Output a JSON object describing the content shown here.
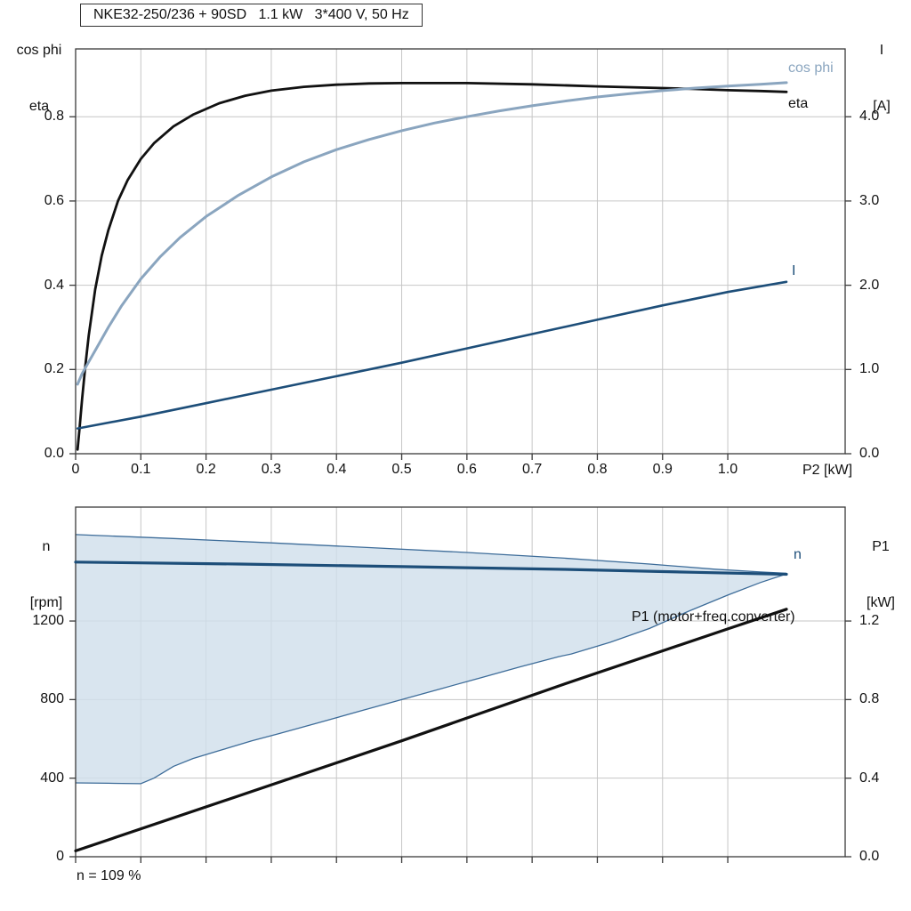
{
  "title": "NKE32-250/236 + 90SD   1.1 kW   3*400 V, 50 Hz",
  "footnote": "n = 109 %",
  "colors": {
    "black": "#111111",
    "cos_phi": "#8aa5bf",
    "dark_blue": "#1d4e79",
    "fill": "#cfdeeb",
    "fill_border": "#3d6c99",
    "grid": "#c6c6c6",
    "frame": "#3a3a3a"
  },
  "labels": {
    "y_left_top_line1": "cos phi",
    "y_left_top_line2": "eta",
    "y_right_top_line1": "I",
    "y_right_top_line2": "[A]",
    "x_top": "P2 [kW]",
    "y_left_bottom_line1": "n",
    "y_left_bottom_line2": "[rpm]",
    "y_right_bottom_line1": "P1",
    "y_right_bottom_line2": "[kW]",
    "curve_cos_phi": "cos phi",
    "curve_eta": "eta",
    "curve_I": "I",
    "curve_n": "n",
    "curve_P1": "P1 (motor+freq.converter)"
  },
  "chart_data": [
    {
      "type": "line",
      "title": "NKE32-250/236 + 90SD   1.1 kW   3*400 V, 50 Hz",
      "xlabel": "P2 [kW]",
      "x_axis": {
        "range": [
          0,
          1.18
        ],
        "ticks": [
          0,
          0.1,
          0.2,
          0.3,
          0.4,
          0.5,
          0.6,
          0.7,
          0.8,
          0.9,
          1.0
        ],
        "tick_labels": [
          "0",
          "0.1",
          "0.2",
          "0.3",
          "0.4",
          "0.5",
          "0.6",
          "0.7",
          "0.8",
          "0.9",
          "1.0"
        ]
      },
      "y_left": {
        "label": "cos phi / eta",
        "range": [
          0,
          0.961
        ],
        "ticks": [
          0,
          0.2,
          0.4,
          0.6,
          0.8
        ],
        "tick_labels": [
          "0.0",
          "0.2",
          "0.4",
          "0.6",
          "0.8"
        ]
      },
      "y_right": {
        "label": "I [A]",
        "range": [
          0,
          4.805
        ],
        "ticks": [
          0,
          1,
          2,
          3,
          4
        ],
        "tick_labels": [
          "0.0",
          "1.0",
          "2.0",
          "3.0",
          "4.0"
        ]
      },
      "series": [
        {
          "name": "eta",
          "axis": "left",
          "color": "black",
          "width": 2.8,
          "points": [
            [
              0.003,
              0.01
            ],
            [
              0.006,
              0.06
            ],
            [
              0.01,
              0.13
            ],
            [
              0.015,
              0.21
            ],
            [
              0.02,
              0.28
            ],
            [
              0.03,
              0.39
            ],
            [
              0.04,
              0.47
            ],
            [
              0.05,
              0.53
            ],
            [
              0.065,
              0.6
            ],
            [
              0.08,
              0.65
            ],
            [
              0.1,
              0.7
            ],
            [
              0.12,
              0.737
            ],
            [
              0.15,
              0.777
            ],
            [
              0.18,
              0.805
            ],
            [
              0.22,
              0.832
            ],
            [
              0.26,
              0.85
            ],
            [
              0.3,
              0.862
            ],
            [
              0.35,
              0.871
            ],
            [
              0.4,
              0.876
            ],
            [
              0.45,
              0.879
            ],
            [
              0.5,
              0.88
            ],
            [
              0.6,
              0.88
            ],
            [
              0.7,
              0.877
            ],
            [
              0.8,
              0.872
            ],
            [
              0.9,
              0.868
            ],
            [
              0.95,
              0.866
            ],
            [
              1.0,
              0.863
            ],
            [
              1.05,
              0.861
            ],
            [
              1.09,
              0.859
            ]
          ]
        },
        {
          "name": "cos phi",
          "axis": "left",
          "color": "cos_phi",
          "width": 3,
          "points": [
            [
              0.003,
              0.165
            ],
            [
              0.01,
              0.19
            ],
            [
              0.02,
              0.218
            ],
            [
              0.03,
              0.245
            ],
            [
              0.05,
              0.3
            ],
            [
              0.07,
              0.35
            ],
            [
              0.1,
              0.415
            ],
            [
              0.13,
              0.468
            ],
            [
              0.16,
              0.513
            ],
            [
              0.2,
              0.563
            ],
            [
              0.25,
              0.614
            ],
            [
              0.3,
              0.657
            ],
            [
              0.35,
              0.693
            ],
            [
              0.4,
              0.722
            ],
            [
              0.45,
              0.746
            ],
            [
              0.5,
              0.767
            ],
            [
              0.55,
              0.785
            ],
            [
              0.6,
              0.8
            ],
            [
              0.65,
              0.814
            ],
            [
              0.7,
              0.826
            ],
            [
              0.75,
              0.837
            ],
            [
              0.8,
              0.847
            ],
            [
              0.85,
              0.855
            ],
            [
              0.9,
              0.862
            ],
            [
              0.95,
              0.868
            ],
            [
              1.0,
              0.873
            ],
            [
              1.05,
              0.877
            ],
            [
              1.09,
              0.881
            ]
          ]
        },
        {
          "name": "I",
          "axis": "right",
          "color": "dark_blue",
          "width": 2.6,
          "points": [
            [
              0.003,
              0.3
            ],
            [
              0.1,
              0.44
            ],
            [
              0.2,
              0.6
            ],
            [
              0.3,
              0.76
            ],
            [
              0.4,
              0.92
            ],
            [
              0.5,
              1.08
            ],
            [
              0.6,
              1.25
            ],
            [
              0.7,
              1.42
            ],
            [
              0.8,
              1.59
            ],
            [
              0.9,
              1.76
            ],
            [
              1.0,
              1.92
            ],
            [
              1.09,
              2.04
            ]
          ]
        }
      ]
    },
    {
      "type": "line",
      "title": "Speed and input power vs P2",
      "x_axis": {
        "range": [
          0,
          1.18
        ],
        "ticks": [
          0,
          0.1,
          0.2,
          0.3,
          0.4,
          0.5,
          0.6,
          0.7,
          0.8,
          0.9,
          1.0
        ],
        "tick_labels": null
      },
      "y_left": {
        "label": "n [rpm]",
        "range": [
          0,
          1780
        ],
        "ticks": [
          0,
          400,
          800,
          1200
        ],
        "tick_labels": [
          "0",
          "400",
          "800",
          "1200"
        ]
      },
      "y_right": {
        "label": "P1 [kW]",
        "range": [
          0,
          1.78
        ],
        "ticks": [
          0,
          0.4,
          0.8,
          1.2
        ],
        "tick_labels": [
          "0.0",
          "0.4",
          "0.8",
          "1.2"
        ]
      },
      "band": {
        "name": "speed-control-range",
        "color": "fill",
        "border": "fill_border",
        "upper": [
          [
            0,
            1640
          ],
          [
            0.15,
            1620
          ],
          [
            0.3,
            1598
          ],
          [
            0.45,
            1574
          ],
          [
            0.6,
            1549
          ],
          [
            0.75,
            1520
          ],
          [
            0.88,
            1490
          ],
          [
            0.98,
            1464
          ],
          [
            1.05,
            1450
          ],
          [
            1.09,
            1443
          ]
        ],
        "lower": [
          [
            0,
            376
          ],
          [
            0.05,
            374
          ],
          [
            0.1,
            372
          ],
          [
            0.12,
            400
          ],
          [
            0.15,
            460
          ],
          [
            0.18,
            500
          ],
          [
            0.22,
            540
          ],
          [
            0.27,
            590
          ],
          [
            0.31,
            625
          ],
          [
            0.37,
            680
          ],
          [
            0.44,
            745
          ],
          [
            0.5,
            800
          ],
          [
            0.56,
            855
          ],
          [
            0.62,
            910
          ],
          [
            0.68,
            965
          ],
          [
            0.74,
            1018
          ],
          [
            0.76,
            1032
          ],
          [
            0.82,
            1092
          ],
          [
            0.88,
            1162
          ],
          [
            0.94,
            1250
          ],
          [
            1.0,
            1332
          ],
          [
            1.05,
            1396
          ],
          [
            1.09,
            1440
          ]
        ]
      },
      "series": [
        {
          "name": "n",
          "axis": "left",
          "color": "dark_blue",
          "width": 3.2,
          "points": [
            [
              0,
              1500
            ],
            [
              0.25,
              1490
            ],
            [
              0.5,
              1477
            ],
            [
              0.75,
              1463
            ],
            [
              0.95,
              1448
            ],
            [
              1.09,
              1438
            ]
          ]
        },
        {
          "name": "P1 (motor+freq.converter)",
          "axis": "right",
          "color": "black",
          "width": 3.2,
          "points": [
            [
              0,
              0.03
            ],
            [
              0.25,
              0.31
            ],
            [
              0.5,
              0.59
            ],
            [
              0.75,
              0.88
            ],
            [
              1.0,
              1.16
            ],
            [
              1.09,
              1.26
            ]
          ]
        }
      ],
      "footnote": "n = 109 %"
    }
  ]
}
